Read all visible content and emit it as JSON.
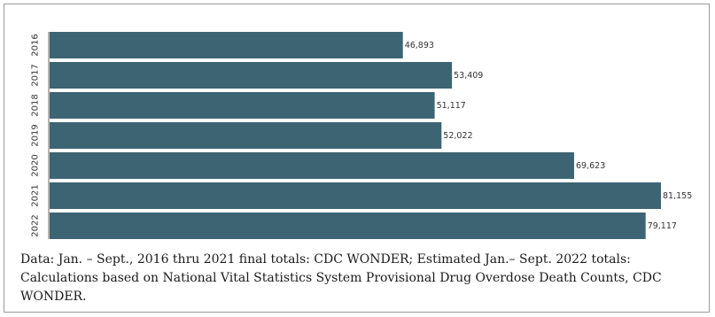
{
  "chart_data": {
    "type": "bar",
    "orientation": "horizontal",
    "categories": [
      "2016",
      "2017",
      "2018",
      "2019",
      "2020",
      "2021",
      "2022"
    ],
    "values": [
      46893,
      53409,
      51117,
      52022,
      69623,
      81155,
      79117
    ],
    "value_labels": [
      "46,893",
      "53,409",
      "51,117",
      "52,022",
      "69,623",
      "81,155",
      "79,117"
    ],
    "bar_color": "#3d6473",
    "grid": false,
    "legend": "none"
  },
  "caption": "Data: Jan. – Sept., 2016 thru 2021 final totals: CDC WONDER; Estimated Jan.– Sept. 2022 totals: Calculations based on National Vital Statistics System Provisional Drug Overdose Death Counts, CDC WONDER."
}
